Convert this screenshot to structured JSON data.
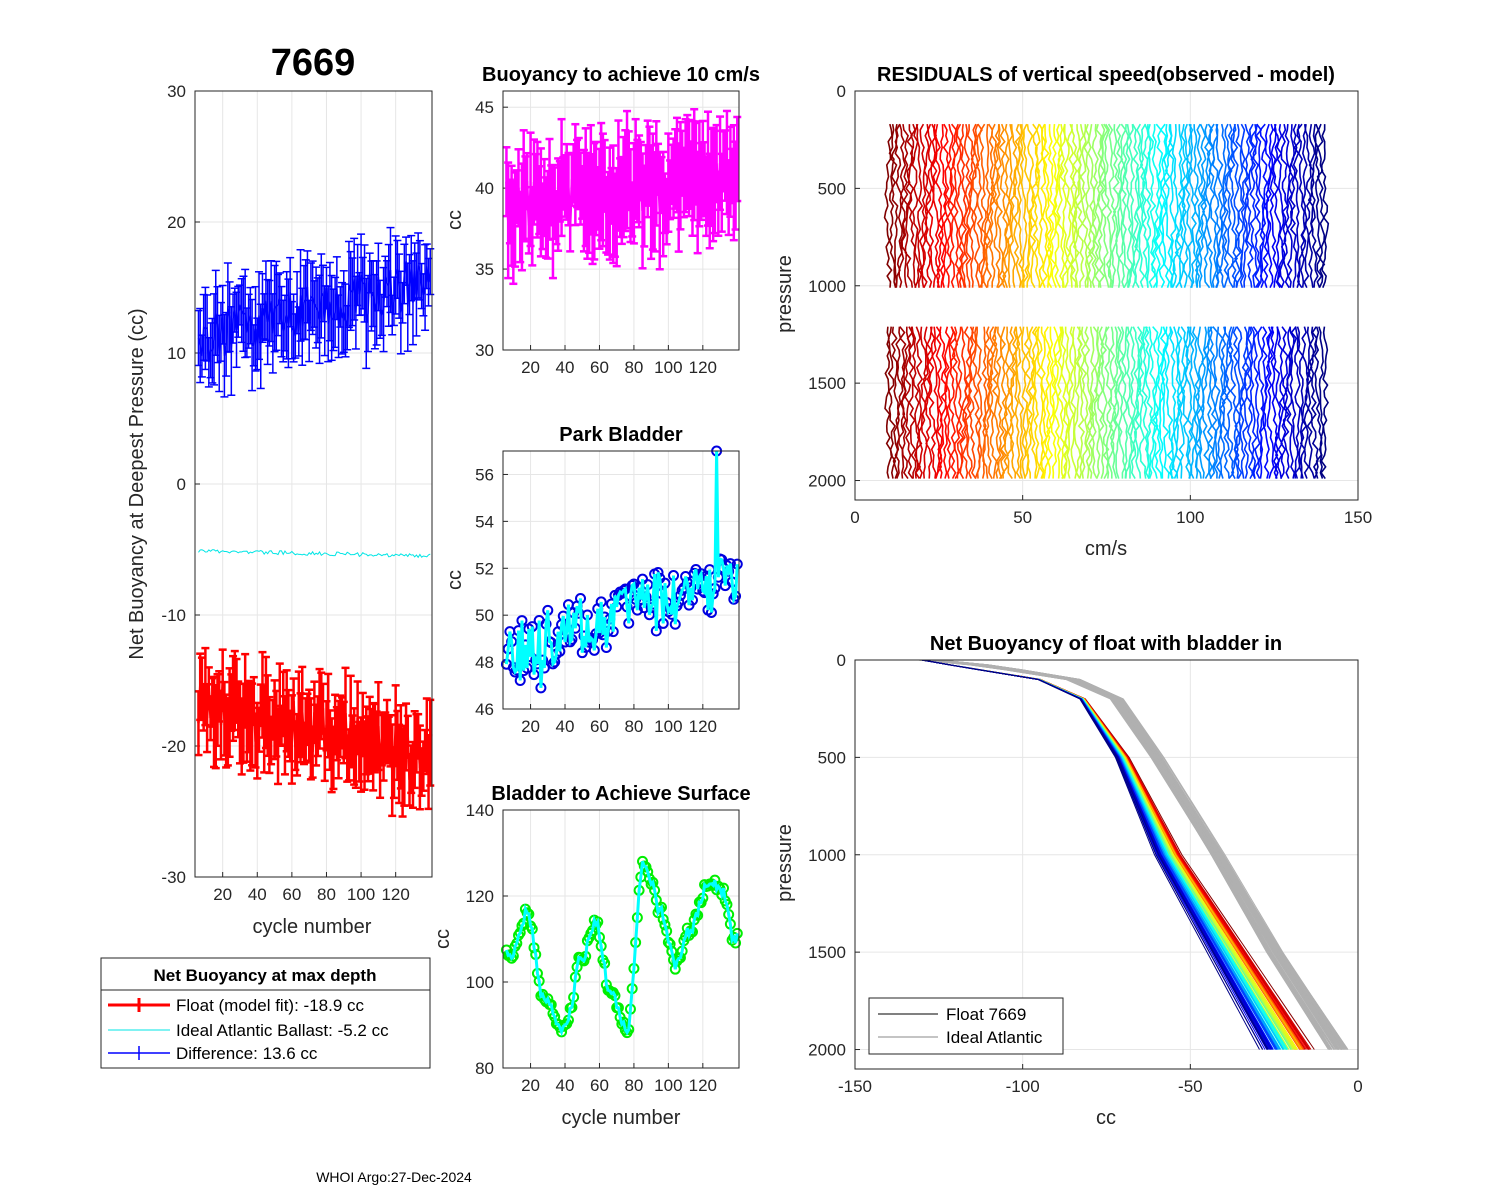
{
  "figure": {
    "float_id": "7669",
    "footer": "WHOI Argo:27-Dec-2024"
  },
  "chart_data": [
    {
      "id": "net_buoyancy",
      "type": "line",
      "title": "7669",
      "xlabel": "cycle number",
      "ylabel": "Net Buoyancy at Deepest Pressure (cc)",
      "xlim": [
        4,
        141
      ],
      "ylim": [
        -30,
        30
      ],
      "xticks": [
        20,
        40,
        60,
        80,
        100,
        120
      ],
      "xticklabels": [
        "20",
        "40",
        "60",
        "80",
        "100",
        "120"
      ],
      "yticks": [
        -30,
        -20,
        -10,
        0,
        10,
        20,
        30
      ],
      "series": [
        {
          "name": "Float (model fit)",
          "color": "#ff0000",
          "start": -16.5,
          "end": -21.0,
          "err": 2.5,
          "noise": 2.0
        },
        {
          "name": "Ideal Atlantic Ballast",
          "color": "#00e5e5",
          "start": -5.1,
          "end": -5.5,
          "err": 0,
          "noise": 0.15
        },
        {
          "name": "Difference",
          "color": "#0000ff",
          "start": 11.0,
          "end": 15.5,
          "err": 2.5,
          "noise": 2.0
        }
      ],
      "legend": {
        "title": "Net Buoyancy at max depth",
        "entries": [
          {
            "label": "Float (model fit): -18.9 cc",
            "color": "#ff0000"
          },
          {
            "label": "Ideal Atlantic Ballast:  -5.2 cc",
            "color": "#00e5e5"
          },
          {
            "label": "Difference:  13.6 cc",
            "color": "#0000ff"
          }
        ]
      }
    },
    {
      "id": "buoyancy_10cms",
      "type": "line",
      "title": "Buoyancy to achieve 10 cm/s",
      "ylabel": "cc",
      "xlim": [
        4,
        141
      ],
      "ylim": [
        30,
        46
      ],
      "xticks": [
        20,
        40,
        60,
        80,
        100,
        120
      ],
      "xticklabels": [
        "20",
        "40",
        "60",
        "80",
        "100",
        "120"
      ],
      "yticks": [
        30,
        35,
        40,
        45
      ],
      "series": [
        {
          "name": "buoyancy",
          "color": "#ff00ff",
          "start": 38.8,
          "end": 40.6,
          "err": 2.6,
          "noise": 1.6
        }
      ]
    },
    {
      "id": "park_bladder",
      "type": "line",
      "title": "Park Bladder",
      "ylabel": "cc",
      "xlim": [
        4,
        141
      ],
      "ylim": [
        46,
        57
      ],
      "xticks": [
        20,
        40,
        60,
        80,
        100,
        120
      ],
      "xticklabels": [
        "20",
        "40",
        "60",
        "80",
        "100",
        "120"
      ],
      "yticks": [
        46,
        48,
        50,
        52,
        54,
        56
      ],
      "series": [
        {
          "name": "park bladder",
          "color": "#00ffff",
          "marker_color": "#0000e0",
          "start": 48.3,
          "end": 51.8,
          "noise": 1.3
        }
      ]
    },
    {
      "id": "bladder_surface",
      "type": "line",
      "title": "Bladder to Achieve Surface",
      "xlabel": "cycle number",
      "ylabel": "cc",
      "xlim": [
        4,
        141
      ],
      "ylim": [
        80,
        140
      ],
      "xticks": [
        20,
        40,
        60,
        80,
        100,
        120
      ],
      "xticklabels": [
        "20",
        "40",
        "60",
        "80",
        "100",
        "120"
      ],
      "yticks": [
        80,
        100,
        120,
        140
      ],
      "series": [
        {
          "name": "bladder surface",
          "color": "#00ffff",
          "marker_color": "#00ee00",
          "knots_x": [
            8,
            18,
            28,
            40,
            50,
            58,
            66,
            76,
            86,
            96,
            104,
            112,
            124,
            132,
            138
          ],
          "knots_y": [
            106,
            116,
            96,
            89,
            106,
            114,
            98,
            89,
            128,
            116,
            104,
            112,
            124,
            121,
            110
          ]
        }
      ]
    },
    {
      "id": "residuals",
      "type": "line",
      "title": "RESIDUALS of vertical speed(observed - model)",
      "xlabel": "cm/s",
      "ylabel": "pressure",
      "xlim": [
        0,
        150
      ],
      "ylim": [
        0,
        2100
      ],
      "y_reversed": true,
      "xticks": [
        0,
        50,
        100,
        150
      ],
      "yticks": [
        0,
        500,
        1000,
        1500,
        2000
      ],
      "profile_x_range": [
        10,
        140
      ],
      "profile_count": 130,
      "segments": [
        [
          170,
          1010
        ],
        [
          1210,
          2000
        ]
      ]
    },
    {
      "id": "net_buoyancy_bladder",
      "type": "line",
      "title": "Net Buoyancy of float with bladder in",
      "xlabel": "cc",
      "ylabel": "pressure",
      "xlim": [
        -150,
        0
      ],
      "ylim": [
        0,
        2100
      ],
      "y_reversed": true,
      "xticks": [
        -150,
        -100,
        -50,
        0
      ],
      "yticks": [
        0,
        500,
        1000,
        1500,
        2000
      ],
      "float_profile": {
        "p": [
          0,
          30,
          100,
          200,
          500,
          1000,
          1500,
          2000
        ],
        "x": [
          -130,
          -120,
          -95,
          -82,
          -70,
          -56,
          -38,
          -20
        ]
      },
      "ideal_profile": {
        "p": [
          0,
          30,
          100,
          200,
          500,
          1000,
          1500,
          2000
        ],
        "x": [
          -128,
          -110,
          -85,
          -72,
          -60,
          -42,
          -25,
          -6
        ]
      },
      "legend": {
        "entries": [
          {
            "label": "Float 7669",
            "color": "#000000"
          },
          {
            "label": "Ideal Atlantic",
            "color": "#b0b0b0"
          }
        ]
      }
    }
  ]
}
